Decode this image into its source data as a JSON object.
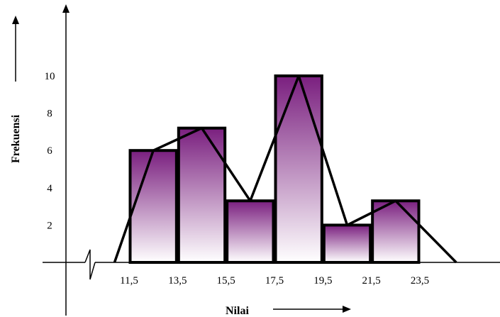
{
  "chart_data": {
    "type": "bar",
    "subtype": "histogram-with-frequency-polygon",
    "xlabel": "Nilai",
    "ylabel": "Frekuensi",
    "x_ticks": [
      "11,5",
      "13,5",
      "15,5",
      "17,5",
      "19,5",
      "21,5",
      "23,5"
    ],
    "y_ticks": [
      "2",
      "4",
      "6",
      "8",
      "10"
    ],
    "bins": [
      {
        "from": 11.5,
        "to": 13.5,
        "value": 6
      },
      {
        "from": 13.5,
        "to": 15.5,
        "value": 7.2
      },
      {
        "from": 15.5,
        "to": 17.5,
        "value": 3.3
      },
      {
        "from": 17.5,
        "to": 19.5,
        "value": 10
      },
      {
        "from": 19.5,
        "to": 21.5,
        "value": 2
      },
      {
        "from": 21.5,
        "to": 23.5,
        "value": 3.3
      }
    ],
    "polygon": {
      "x": [
        10.9,
        12.5,
        14.5,
        16.5,
        18.5,
        20.5,
        22.5,
        25.0
      ],
      "y": [
        0,
        6,
        7.2,
        3.3,
        10,
        2,
        3.3,
        0
      ]
    },
    "colors": {
      "bar_top": "#7a1f7f",
      "bar_bottom": "#ffffff",
      "stroke": "#000000"
    }
  }
}
